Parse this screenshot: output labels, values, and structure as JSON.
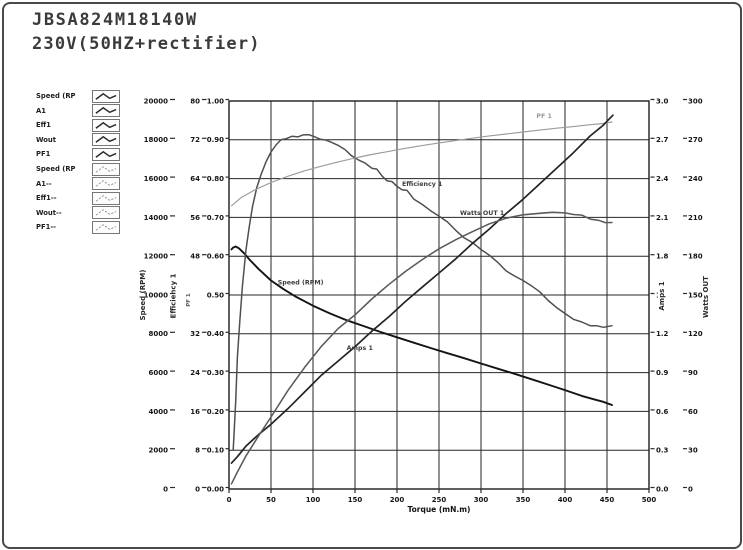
{
  "header": {
    "title": "JBSA824M18140W",
    "subtitle": "230V(50HZ+rectifier)"
  },
  "legend": {
    "items": [
      {
        "label": "Speed (RP",
        "style": "solid",
        "icon": "curve-sample-icon"
      },
      {
        "label": "A1",
        "style": "solid",
        "icon": "curve-sample-icon"
      },
      {
        "label": "Eff1",
        "style": "solid",
        "icon": "curve-sample-icon"
      },
      {
        "label": "Wout",
        "style": "solid",
        "icon": "curve-sample-icon"
      },
      {
        "label": "PF1",
        "style": "solid",
        "icon": "curve-sample-icon"
      },
      {
        "label": "Speed (RP",
        "style": "dashed",
        "icon": "curve-sample-icon"
      },
      {
        "label": "A1--",
        "style": "dashed",
        "icon": "curve-sample-icon"
      },
      {
        "label": "Eff1--",
        "style": "dashed",
        "icon": "curve-sample-icon"
      },
      {
        "label": "Wout--",
        "style": "dashed",
        "icon": "curve-sample-icon"
      },
      {
        "label": "PF1--",
        "style": "dashed",
        "icon": "curve-sample-icon"
      }
    ]
  },
  "chart_data": {
    "type": "line",
    "title": "",
    "xlabel": "Torque (mN.m)",
    "x_ticks": [
      "0",
      "50",
      "100",
      "150",
      "200",
      "250",
      "300",
      "350",
      "400",
      "450",
      "500"
    ],
    "x_range": [
      0,
      500
    ],
    "grid": true,
    "legend_position": "outside-left",
    "axes": [
      {
        "id": "speed",
        "label": "Speed (RPM)",
        "side": "left",
        "max": 20000,
        "ticks": [
          "20000",
          "18000",
          "16000",
          "14000",
          "12000",
          "10000",
          "8000",
          "6000",
          "4000",
          "2000",
          "0"
        ]
      },
      {
        "id": "eff",
        "label": "Efficiency 1",
        "side": "left",
        "max": 80,
        "ticks": [
          "80",
          "72",
          "64",
          "56",
          "48",
          "",
          "32",
          "24",
          "16",
          "8",
          "0"
        ]
      },
      {
        "id": "pf",
        "label": "PF 1",
        "side": "left",
        "max": 1.0,
        "ticks": [
          "1.00",
          "0.90",
          "0.80",
          "0.70",
          "0.60",
          "0.50",
          "0.40",
          "0.30",
          "0.20",
          "0.10",
          "0.00"
        ]
      },
      {
        "id": "amps",
        "label": "Amps 1",
        "side": "right",
        "max": 3.0,
        "ticks": [
          "3.0",
          "2.7",
          "2.4",
          "2.1",
          "1.8",
          "1.5",
          "1.2",
          "0.9",
          "0.6",
          "0.3",
          "0.0"
        ]
      },
      {
        "id": "watts",
        "label": "Watts OUT",
        "side": "right",
        "max": 300,
        "ticks": [
          "300",
          "270",
          "240",
          "210",
          "180",
          "150",
          "120",
          "90",
          "60",
          "30",
          "0"
        ]
      }
    ],
    "series": [
      {
        "name": "Speed (RPM)",
        "axis": "speed",
        "points": [
          [
            3,
            12350
          ],
          [
            5,
            12450
          ],
          [
            8,
            12500
          ],
          [
            12,
            12400
          ],
          [
            18,
            12150
          ],
          [
            25,
            11800
          ],
          [
            35,
            11350
          ],
          [
            50,
            10750
          ],
          [
            65,
            10300
          ],
          [
            80,
            9900
          ],
          [
            100,
            9450
          ],
          [
            120,
            9050
          ],
          [
            140,
            8700
          ],
          [
            160,
            8400
          ],
          [
            180,
            8100
          ],
          [
            200,
            7820
          ],
          [
            220,
            7540
          ],
          [
            240,
            7270
          ],
          [
            260,
            7000
          ],
          [
            280,
            6740
          ],
          [
            300,
            6470
          ],
          [
            320,
            6200
          ],
          [
            340,
            5940
          ],
          [
            360,
            5660
          ],
          [
            380,
            5380
          ],
          [
            400,
            5100
          ],
          [
            420,
            4800
          ],
          [
            435,
            4620
          ],
          [
            445,
            4500
          ],
          [
            456,
            4330
          ]
        ]
      },
      {
        "name": "Efficiency 1",
        "axis": "eff",
        "points": [
          [
            5,
            8
          ],
          [
            8,
            18
          ],
          [
            10,
            27
          ],
          [
            13,
            35
          ],
          [
            16,
            42
          ],
          [
            20,
            49
          ],
          [
            24,
            54
          ],
          [
            28,
            58
          ],
          [
            33,
            62
          ],
          [
            38,
            65
          ],
          [
            44,
            67.5
          ],
          [
            50,
            69.5
          ],
          [
            56,
            70.8
          ],
          [
            62,
            71.8
          ],
          [
            68,
            72.4
          ],
          [
            75,
            72.9
          ],
          [
            82,
            72.6
          ],
          [
            88,
            73.0
          ],
          [
            95,
            72.8
          ],
          [
            102,
            72.6
          ],
          [
            108,
            72.4
          ],
          [
            115,
            72.0
          ],
          [
            122,
            71.5
          ],
          [
            130,
            70.7
          ],
          [
            138,
            69.8
          ],
          [
            146,
            68.9
          ],
          [
            154,
            68.0
          ],
          [
            162,
            67.2
          ],
          [
            170,
            66.1
          ],
          [
            176,
            65.7
          ],
          [
            182,
            64.6
          ],
          [
            188,
            63.8
          ],
          [
            194,
            63.4
          ],
          [
            200,
            62.4
          ],
          [
            206,
            61.5
          ],
          [
            212,
            61.4
          ],
          [
            220,
            60.0
          ],
          [
            230,
            58.8
          ],
          [
            240,
            57.4
          ],
          [
            250,
            56.2
          ],
          [
            260,
            54.8
          ],
          [
            270,
            53.4
          ],
          [
            280,
            52.0
          ],
          [
            290,
            50.8
          ],
          [
            300,
            49.4
          ],
          [
            310,
            48.0
          ],
          [
            320,
            46.6
          ],
          [
            330,
            45.2
          ],
          [
            340,
            44.0
          ],
          [
            350,
            43.0
          ],
          [
            360,
            41.8
          ],
          [
            370,
            40.4
          ],
          [
            380,
            39.0
          ],
          [
            390,
            37.6
          ],
          [
            400,
            36.2
          ],
          [
            410,
            35.0
          ],
          [
            420,
            34.2
          ],
          [
            430,
            33.6
          ],
          [
            438,
            33.9
          ],
          [
            446,
            33.4
          ],
          [
            456,
            33.7
          ]
        ]
      },
      {
        "name": "PF 1",
        "axis": "pf",
        "points": [
          [
            3,
            0.73
          ],
          [
            15,
            0.752
          ],
          [
            30,
            0.77
          ],
          [
            50,
            0.79
          ],
          [
            70,
            0.806
          ],
          [
            90,
            0.82
          ],
          [
            110,
            0.832
          ],
          [
            130,
            0.843
          ],
          [
            150,
            0.853
          ],
          [
            170,
            0.862
          ],
          [
            190,
            0.87
          ],
          [
            210,
            0.878
          ],
          [
            230,
            0.885
          ],
          [
            250,
            0.892
          ],
          [
            270,
            0.898
          ],
          [
            290,
            0.904
          ],
          [
            310,
            0.91
          ],
          [
            330,
            0.915
          ],
          [
            350,
            0.92
          ],
          [
            370,
            0.925
          ],
          [
            390,
            0.93
          ],
          [
            410,
            0.934
          ],
          [
            430,
            0.939
          ],
          [
            445,
            0.942
          ],
          [
            456,
            0.946
          ]
        ]
      },
      {
        "name": "Amps 1",
        "axis": "amps",
        "points": [
          [
            3,
            0.2
          ],
          [
            10,
            0.25
          ],
          [
            20,
            0.33
          ],
          [
            35,
            0.42
          ],
          [
            50,
            0.5
          ],
          [
            70,
            0.62
          ],
          [
            90,
            0.75
          ],
          [
            110,
            0.88
          ],
          [
            130,
            0.99
          ],
          [
            150,
            1.1
          ],
          [
            170,
            1.22
          ],
          [
            190,
            1.33
          ],
          [
            210,
            1.45
          ],
          [
            230,
            1.56
          ],
          [
            250,
            1.67
          ],
          [
            270,
            1.78
          ],
          [
            290,
            1.9
          ],
          [
            310,
            2.01
          ],
          [
            330,
            2.13
          ],
          [
            350,
            2.24
          ],
          [
            370,
            2.36
          ],
          [
            390,
            2.48
          ],
          [
            410,
            2.6
          ],
          [
            430,
            2.73
          ],
          [
            445,
            2.81
          ],
          [
            457,
            2.89
          ]
        ]
      },
      {
        "name": "Watts OUT 1",
        "axis": "watts",
        "points": [
          [
            3,
            4
          ],
          [
            10,
            13
          ],
          [
            20,
            25
          ],
          [
            35,
            41
          ],
          [
            50,
            56
          ],
          [
            70,
            76
          ],
          [
            90,
            94
          ],
          [
            110,
            110
          ],
          [
            130,
            124
          ],
          [
            150,
            135
          ],
          [
            170,
            147
          ],
          [
            190,
            158
          ],
          [
            210,
            168
          ],
          [
            230,
            177
          ],
          [
            250,
            186
          ],
          [
            270,
            193
          ],
          [
            290,
            199
          ],
          [
            310,
            205
          ],
          [
            330,
            209
          ],
          [
            350,
            212
          ],
          [
            370,
            213.5
          ],
          [
            385,
            214
          ],
          [
            400,
            213.5
          ],
          [
            410,
            212
          ],
          [
            420,
            211.5
          ],
          [
            430,
            209
          ],
          [
            440,
            208
          ],
          [
            448,
            206
          ],
          [
            456,
            206
          ]
        ]
      }
    ],
    "annotations": [
      {
        "text": "Speed (RPM)",
        "t": 58,
        "d": 5.27,
        "light": false
      },
      {
        "text": "Amps 1",
        "t": 140,
        "d": 3.58,
        "light": false
      },
      {
        "text": "Efficiency 1",
        "t": 206,
        "d": 7.81,
        "light": false
      },
      {
        "text": "Watts OUT 1",
        "t": 275,
        "d": 7.06,
        "light": false
      },
      {
        "text": "PF 1",
        "t": 366,
        "d": 9.56,
        "light": true
      }
    ]
  }
}
